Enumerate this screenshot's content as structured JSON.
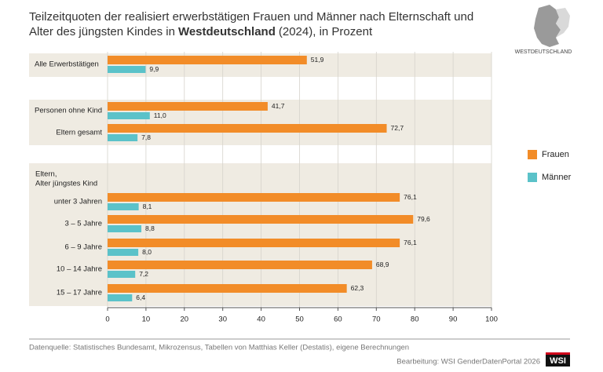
{
  "chart_data": {
    "type": "hbar",
    "title": {
      "line1": "Teilzeitquoten der realisiert erwerbstätigen Frauen und Männer nach Elternschaft und",
      "line2_start": "Alter des jüngsten Kindes in",
      "line2_bold": "Westdeutschland",
      "line2_end": "(2024), in Prozent"
    },
    "map_label": "WESTDEUTSCHLAND",
    "group_label": [
      "Eltern,",
      "Alter jüngstes Kind"
    ],
    "categories": [
      "Alle Erwerbstätigen",
      "Personen ohne Kind",
      "Eltern gesamt",
      "unter 3 Jahren",
      "3 – 5 Jahre",
      "6 – 9 Jahre",
      "10 – 14 Jahre",
      "15 – 17 Jahre"
    ],
    "series": [
      {
        "name": "Frauen",
        "color": "#f28c28",
        "values": [
          51.9,
          41.7,
          72.7,
          76.1,
          79.6,
          76.1,
          68.9,
          62.3
        ],
        "value_labels": [
          "51,9",
          "41,7",
          "72,7",
          "76,1",
          "79,6",
          "76,1",
          "68,9",
          "62,3"
        ]
      },
      {
        "name": "Männer",
        "color": "#5bc2c9",
        "values": [
          9.9,
          11.0,
          7.8,
          8.1,
          8.8,
          8.0,
          7.2,
          6.4
        ],
        "value_labels": [
          "9,9",
          "11,0",
          "7,8",
          "8,1",
          "8,8",
          "8,0",
          "7,2",
          "6,4"
        ]
      }
    ],
    "xlim": [
      0,
      100
    ],
    "xticks": [
      0,
      10,
      20,
      30,
      40,
      50,
      60,
      70,
      80,
      90,
      100
    ],
    "grid": true,
    "legend": "right",
    "source": "Datenquelle: Statistisches Bundesamt, Mikrozensus, Tabellen von Matthias Keller (Destatis), eigene Berechnungen",
    "credit": "Bearbeitung: WSI GenderDatenPortal 2026",
    "logo": "WSI"
  }
}
